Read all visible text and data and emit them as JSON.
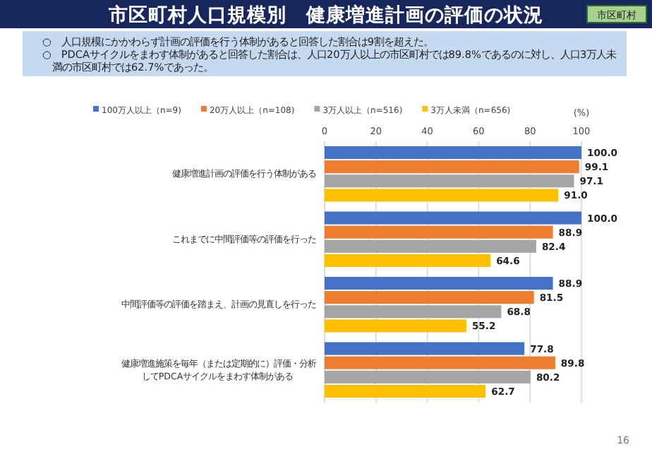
{
  "chart_data": {
    "type": "bar",
    "orientation": "horizontal",
    "title": "市区町村人口規模別　健康増進計画の評価の状況",
    "annotations": [
      "市区町村",
      "○　人口規模にかかわらず計画の評価を行う体制があると回答した割合は9割を超えた。",
      "○　PDCAサイクルをまわす体制があると回答した割合は、人口20万人以上の市区町村では89.8%であるのに対し、人口3万人未満の市区町村では62.7%であった。",
      "16"
    ],
    "xlabel": "(%)",
    "categories": [
      "健康増進計画の評価を行う体制がある",
      "これまでに中間評価等の評価を行った",
      "中間評価等の評価を踏まえ、計画の見直しを行った",
      "健康増進施策を毎年（または定期的に）評価・分析してPDCAサイクルをまわす体制がある"
    ],
    "series": [
      {
        "name": "100万人以上（n=9)",
        "color": "#4472c4",
        "values": [
          100.0,
          100.0,
          88.9,
          77.8
        ],
        "value_labels": [
          "100.0",
          "100.0",
          "88.9",
          "77.8"
        ]
      },
      {
        "name": "20万人以上（n=108)",
        "color": "#ed7d31",
        "values": [
          99.1,
          88.9,
          81.5,
          89.8
        ],
        "value_labels": [
          "99.1",
          "88.9",
          "81.5",
          "89.8"
        ]
      },
      {
        "name": "3万人以上（n=516)",
        "color": "#a5a5a5",
        "values": [
          97.1,
          82.4,
          68.8,
          80.2
        ],
        "value_labels": [
          "97.1",
          "82.4",
          "68.8",
          "80.2"
        ]
      },
      {
        "name": "3万人未満（n=656)",
        "color": "#ffc000",
        "values": [
          91.0,
          64.6,
          55.2,
          62.7
        ],
        "value_labels": [
          "91.0",
          "64.6",
          "55.2",
          "62.7"
        ]
      }
    ],
    "xlim": [
      0,
      100
    ],
    "xticks": [
      0,
      20,
      40,
      60,
      80,
      100
    ],
    "grid": "x",
    "legend": "top"
  }
}
